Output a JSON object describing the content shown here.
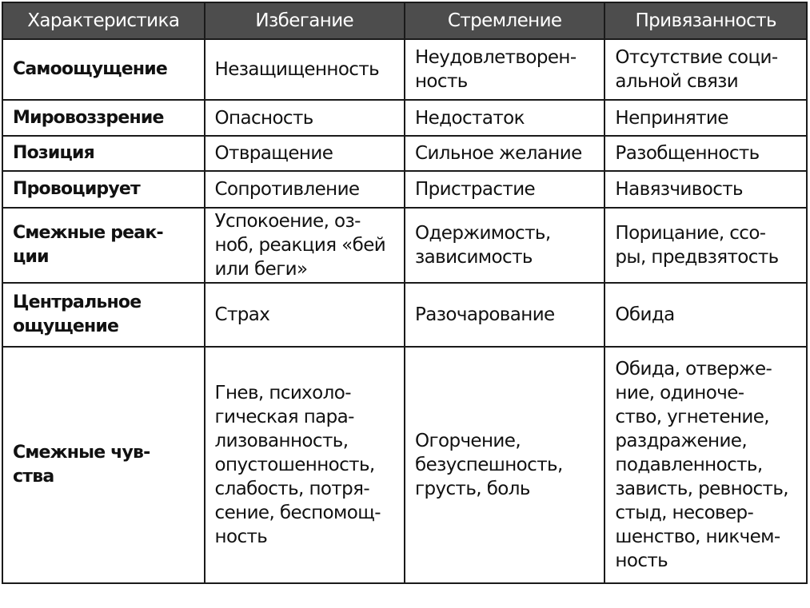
{
  "table": {
    "headers": [
      "Характеристика",
      "Избегание",
      "Стремление",
      "Привязанность"
    ],
    "rows": [
      {
        "label": "Самоощущение",
        "cells": [
          "Незащищенность",
          "Неудовлетворен-\nность",
          "Отсутствие соци-\nальной связи"
        ]
      },
      {
        "label": "Мировоззрение",
        "cells": [
          "Опасность",
          "Недостаток",
          "Непринятие"
        ]
      },
      {
        "label": "Позиция",
        "cells": [
          "Отвращение",
          "Сильное желание",
          "Разобщенность"
        ]
      },
      {
        "label": "Провоцирует",
        "cells": [
          "Сопротивление",
          "Пристрастие",
          "Навязчивость"
        ]
      },
      {
        "label": "Смежные реак-\nции",
        "cells": [
          "Успокоение, оз-\nноб, реакция «бей\nили беги»",
          "Одержимость,\nзависимость",
          "Порицание, ссо-\nры, предвзятость"
        ]
      },
      {
        "label": "Центральное\nощущение",
        "cells": [
          "Страх",
          "Разочарование",
          "Обида"
        ]
      },
      {
        "label": "Смежные чув-\nства",
        "cells": [
          "Гнев, психоло-\nгическая пара-\nлизованность,\nопустошенность,\nслабость, потря-\nсение, беспомощ-\nность",
          "Огорчение,\nбезуспешность,\nгрусть, боль",
          "Обида, отверже-\nние, одиноче-\nство, угнетение,\nраздражение,\nподавленность,\nзависть, ревность,\nстыд, несовер-\nшенство, никчем-\nность"
        ]
      }
    ]
  }
}
